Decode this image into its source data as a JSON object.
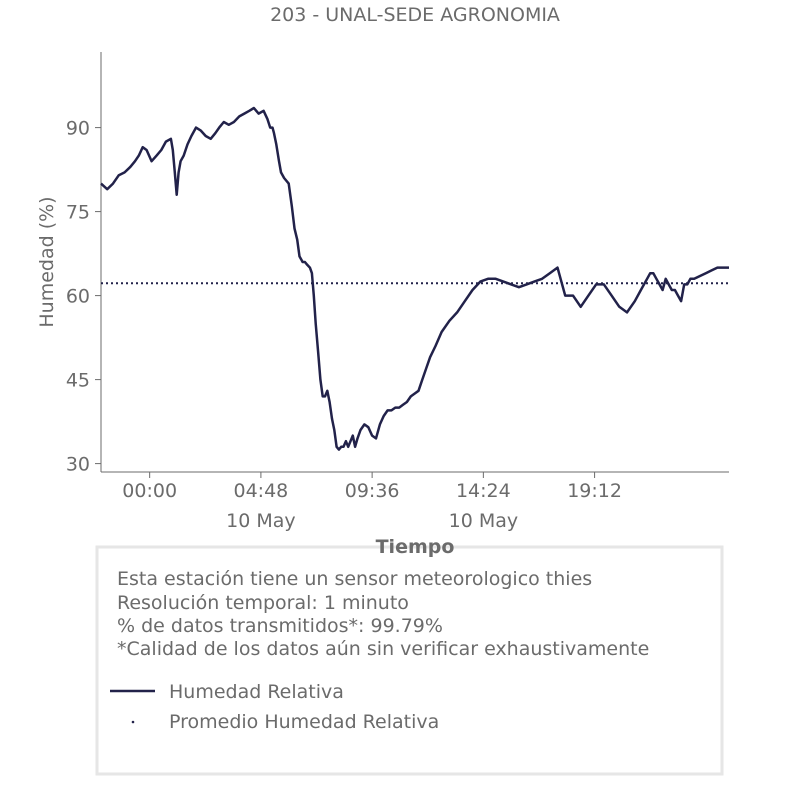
{
  "chart_data": {
    "type": "line",
    "title": "203 - UNAL-SEDE AGRONOMIA",
    "xlabel": "Tiempo",
    "ylabel": "Humedad (%)",
    "ylim": [
      28.5,
      103.5
    ],
    "yticks": [
      30,
      45,
      60,
      75,
      90
    ],
    "xlim_minutes": [
      -126,
      1500
    ],
    "xticks": [
      {
        "minute": 0,
        "time": "00:00",
        "date": ""
      },
      {
        "minute": 288,
        "time": "04:48",
        "date": "10 May"
      },
      {
        "minute": 576,
        "time": "09:36",
        "date": ""
      },
      {
        "minute": 864,
        "time": "14:24",
        "date": "10 May"
      },
      {
        "minute": 1152,
        "time": "19:12",
        "date": ""
      }
    ],
    "x_unit": "minutes from 00:00, 10 May",
    "series": [
      {
        "name": "Humedad Relativa",
        "color": "#22224a",
        "style": "solid",
        "x": [
          -126,
          -110,
          -95,
          -80,
          -65,
          -50,
          -38,
          -28,
          -18,
          -8,
          5,
          18,
          30,
          42,
          55,
          60,
          65,
          70,
          75,
          80,
          88,
          98,
          108,
          120,
          132,
          145,
          158,
          170,
          180,
          192,
          205,
          218,
          232,
          245,
          258,
          270,
          282,
          295,
          305,
          312,
          318,
          322,
          328,
          335,
          340,
          348,
          360,
          368,
          375,
          382,
          388,
          392,
          396,
          402,
          408,
          415,
          420,
          425,
          430,
          436,
          442,
          448,
          454,
          460,
          466,
          472,
          478,
          484,
          490,
          496,
          502,
          508,
          514,
          520,
          526,
          532,
          538,
          546,
          556,
          566,
          576,
          586,
          596,
          606,
          616,
          626,
          636,
          646,
          656,
          666,
          676,
          686,
          696,
          706,
          716,
          726,
          740,
          756,
          776,
          796,
          816,
          836,
          856,
          876,
          896,
          916,
          936,
          956,
          976,
          996,
          1016,
          1036,
          1056,
          1076,
          1096,
          1116,
          1136,
          1156,
          1176,
          1196,
          1216,
          1236,
          1256,
          1272,
          1288,
          1296,
          1304,
          1312,
          1320,
          1328,
          1336,
          1344,
          1352,
          1360,
          1368,
          1376,
          1384,
          1392,
          1400,
          1410,
          1425,
          1440,
          1455,
          1470,
          1485,
          1500
        ],
        "y": [
          80,
          79,
          80,
          81.5,
          82,
          83,
          84,
          85,
          86.5,
          86,
          84,
          85,
          86,
          87.5,
          88,
          86,
          82,
          78,
          82,
          84,
          85,
          87,
          88.5,
          90,
          89.5,
          88.5,
          88,
          89,
          90,
          91,
          90.5,
          91,
          92,
          92.5,
          93,
          93.5,
          92.5,
          93,
          91.5,
          90,
          90,
          89,
          87,
          84,
          82,
          81,
          80,
          76,
          72,
          70,
          67,
          66.5,
          66,
          66,
          65.5,
          65,
          64,
          60,
          55,
          50,
          45,
          42,
          42,
          43,
          41,
          38,
          36,
          33,
          32.5,
          33,
          33,
          34,
          33,
          34,
          35,
          33,
          34.5,
          36,
          37,
          36.5,
          35,
          34.5,
          37,
          38.5,
          39.5,
          39.5,
          40,
          40,
          40.5,
          41,
          42,
          42.5,
          43,
          45,
          47,
          49,
          51,
          53.5,
          55.5,
          57,
          59,
          61,
          62.5,
          63,
          63,
          62.5,
          62,
          61.5,
          62,
          62.5,
          63,
          64,
          65,
          60,
          60,
          58,
          60,
          62,
          62,
          60,
          58,
          57,
          59,
          61,
          63,
          64,
          64,
          63,
          62,
          61,
          63,
          62,
          61,
          61,
          60,
          59,
          62,
          62,
          63,
          63,
          63.5,
          64,
          64.5,
          65,
          65,
          65
        ]
      },
      {
        "name": "Promedio Humedad Relativa",
        "color": "#22224a",
        "style": "dotted",
        "value": 62.2
      }
    ]
  },
  "info": {
    "lines": [
      "Esta estación tiene un sensor meteorologico thies",
      "Resolución temporal: 1 minuto",
      "% de datos transmitidos*: 99.79%",
      "*Calidad de los datos aún sin verificar exhaustivamente"
    ]
  },
  "legend": {
    "items": [
      {
        "label": "Humedad Relativa",
        "style": "solid"
      },
      {
        "label": "Promedio Humedad Relativa",
        "style": "dot"
      }
    ]
  },
  "colors": {
    "line": "#22224a",
    "text": "#6b6b6b",
    "axis": "#6b6b6b",
    "box_border": "#e6e6e6"
  }
}
